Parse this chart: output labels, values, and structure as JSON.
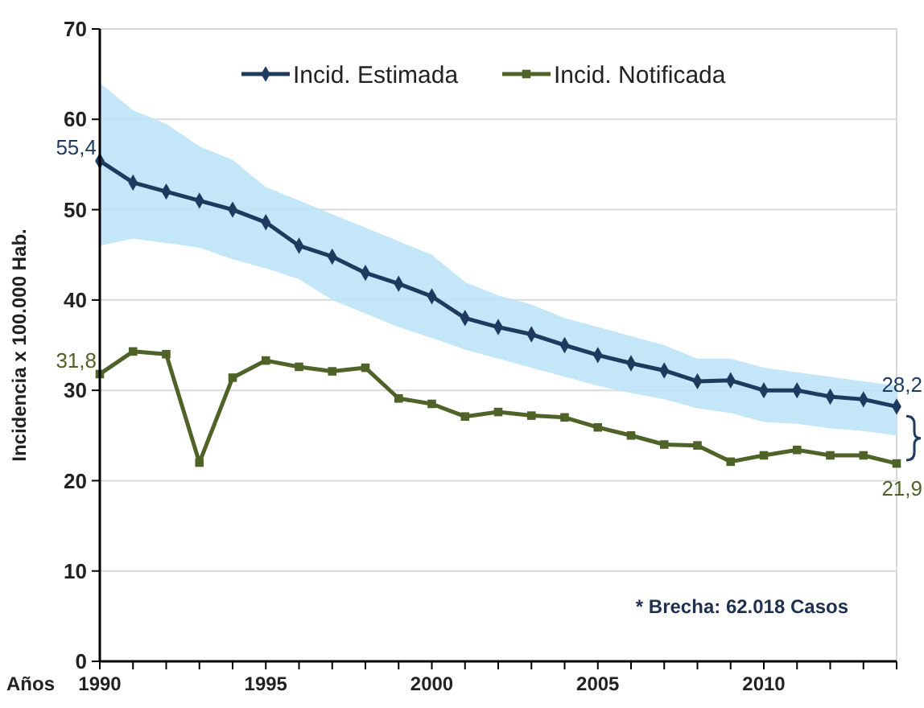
{
  "chart_data": {
    "type": "line",
    "xlabel": "Años",
    "ylabel": "Incidencia x 100.000 Hab.",
    "x": [
      1990,
      1991,
      1992,
      1993,
      1994,
      1995,
      1996,
      1997,
      1998,
      1999,
      2000,
      2001,
      2002,
      2003,
      2004,
      2005,
      2006,
      2007,
      2008,
      2009,
      2010,
      2011,
      2012,
      2013,
      2014
    ],
    "series": [
      {
        "name": "Incid. Estimada",
        "color": "#1f3a5f",
        "marker": "diamond",
        "values": [
          55.4,
          53,
          52,
          51,
          50,
          48.6,
          46,
          44.8,
          43,
          41.8,
          40.4,
          38,
          37,
          36.2,
          35,
          33.9,
          33,
          32.2,
          31,
          31.1,
          30,
          30,
          29.3,
          29,
          28.2
        ],
        "lower": [
          46,
          46.8,
          46.3,
          45.8,
          44.5,
          43.5,
          42.3,
          40,
          38.5,
          37,
          35.8,
          34.5,
          33.5,
          32.5,
          31.5,
          30.5,
          29.7,
          29,
          28,
          27.5,
          26.5,
          26.3,
          25.8,
          25.5,
          25
        ],
        "upper": [
          64,
          61,
          59.5,
          57,
          55.5,
          52.5,
          51,
          49.5,
          48,
          46.5,
          45,
          42,
          40.5,
          39.5,
          38,
          37,
          36,
          35,
          33.5,
          33.5,
          32.5,
          32,
          31.5,
          31,
          30.5
        ],
        "value_labels": [
          "55,4",
          null,
          null,
          null,
          null,
          null,
          null,
          null,
          null,
          null,
          null,
          null,
          null,
          null,
          null,
          null,
          null,
          null,
          null,
          null,
          null,
          null,
          null,
          null,
          "28,2"
        ]
      },
      {
        "name": "Incid. Notificada",
        "color": "#4f6228",
        "marker": "square",
        "values": [
          31.8,
          34.3,
          34,
          22,
          31.4,
          33.3,
          32.6,
          32.1,
          32.5,
          29.1,
          28.5,
          27.1,
          27.6,
          27.2,
          27,
          25.9,
          25,
          24,
          23.9,
          22.1,
          22.8,
          23.4,
          22.8,
          22.8,
          21.9
        ],
        "value_labels": [
          "31,8",
          null,
          null,
          null,
          null,
          null,
          null,
          null,
          null,
          null,
          null,
          null,
          null,
          null,
          null,
          null,
          null,
          null,
          null,
          null,
          null,
          null,
          null,
          null,
          "21,9"
        ]
      }
    ],
    "xlim": [
      1990,
      2014
    ],
    "xticks": [
      1990,
      {
        "value": 1991,
        "label": null
      },
      {
        "value": 1992,
        "label": null
      },
      {
        "value": 1993,
        "label": null
      },
      {
        "value": 1994,
        "label": null
      },
      1995,
      {
        "value": 1996,
        "label": null
      },
      {
        "value": 1997,
        "label": null
      },
      {
        "value": 1998,
        "label": null
      },
      {
        "value": 1999,
        "label": null
      },
      2000,
      {
        "value": 2001,
        "label": null
      },
      {
        "value": 2002,
        "label": null
      },
      {
        "value": 2003,
        "label": null
      },
      {
        "value": 2004,
        "label": null
      },
      2005,
      {
        "value": 2006,
        "label": null
      },
      {
        "value": 2007,
        "label": null
      },
      {
        "value": 2008,
        "label": null
      },
      {
        "value": 2009,
        "label": null
      },
      2010,
      {
        "value": 2011,
        "label": null
      },
      {
        "value": 2012,
        "label": null
      },
      {
        "value": 2013,
        "label": null
      },
      {
        "value": 2014,
        "label": null
      }
    ],
    "ylim": [
      0,
      70
    ],
    "yticks": [
      0,
      10,
      20,
      30,
      40,
      50,
      60,
      70
    ],
    "grid": "y",
    "legend": "top",
    "line_style": "solid",
    "annotations": [
      "* Brecha: 62.018 Casos"
    ]
  }
}
